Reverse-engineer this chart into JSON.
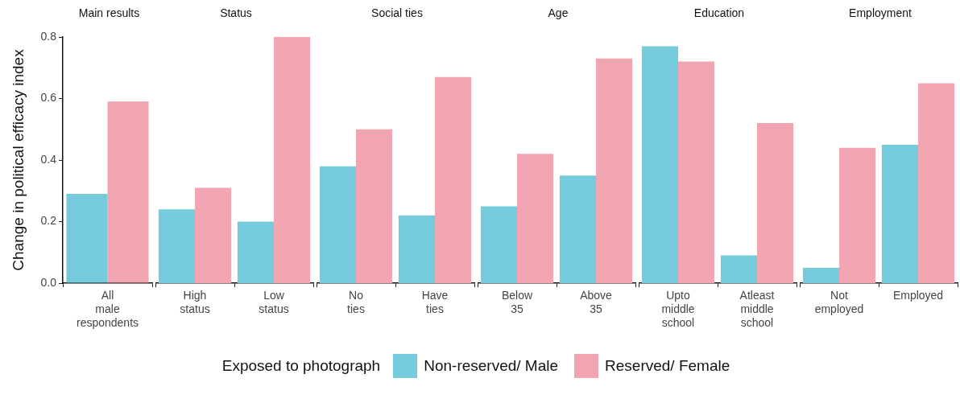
{
  "chart_data": [
    {
      "type": "bar",
      "title": "Main results",
      "ylabel": "Change in political efficacy index",
      "legend_title": "Exposed to photograph",
      "legend": "bottom",
      "categories": [
        "All male respondents"
      ],
      "ylim": [
        0,
        0.8
      ],
      "yticks": [
        {
          "value": 0,
          "label": "0.0"
        },
        {
          "value": 0.2,
          "label": "0.2"
        },
        {
          "value": 0.4,
          "label": "0.4"
        },
        {
          "value": 0.6,
          "label": "0.6"
        },
        {
          "value": 0.8,
          "label": "0.8"
        }
      ],
      "grid": false,
      "series": [
        {
          "name": "Non-reserved/ Male",
          "color": "#75cbdc",
          "values": [
            0.29
          ]
        },
        {
          "name": "Reserved/ Female",
          "color": "#f0a5b0",
          "values": [
            0.59
          ]
        }
      ]
    },
    {
      "type": "bar",
      "title": "Status",
      "categories": [
        "High status",
        "Low status"
      ],
      "ylim": [
        0,
        0.8
      ],
      "tick_labels": "x",
      "grid": false,
      "series": [
        {
          "color": "#75cbdc",
          "values": [
            0.24,
            0.2
          ]
        },
        {
          "color": "#f0a5b0",
          "values": [
            0.31,
            0.8
          ]
        }
      ]
    },
    {
      "type": "bar",
      "title": "Social ties",
      "categories": [
        "No ties",
        "Have ties"
      ],
      "ylim": [
        0,
        0.8
      ],
      "tick_labels": "x",
      "grid": false,
      "series": [
        {
          "color": "#75cbdc",
          "values": [
            0.38,
            0.22
          ]
        },
        {
          "color": "#f0a5b0",
          "values": [
            0.5,
            0.67
          ]
        }
      ]
    },
    {
      "type": "bar",
      "title": "Age",
      "categories": [
        "Below 35",
        "Above 35"
      ],
      "ylim": [
        0,
        0.8
      ],
      "tick_labels": "x",
      "grid": false,
      "series": [
        {
          "color": "#75cbdc",
          "values": [
            0.25,
            0.35
          ]
        },
        {
          "color": "#f0a5b0",
          "values": [
            0.42,
            0.73
          ]
        }
      ]
    },
    {
      "type": "bar",
      "title": "Education",
      "categories": [
        "Upto middle school",
        "Atleast middle school"
      ],
      "ylim": [
        0,
        0.8
      ],
      "tick_labels": "x",
      "grid": false,
      "series": [
        {
          "color": "#75cbdc",
          "values": [
            0.77,
            0.09
          ]
        },
        {
          "color": "#f0a5b0",
          "values": [
            0.72,
            0.52
          ]
        }
      ]
    },
    {
      "type": "bar",
      "title": "Employment",
      "categories": [
        "Not employed",
        "Employed"
      ],
      "ylim": [
        0,
        0.8
      ],
      "tick_labels": "x",
      "grid": false,
      "series": [
        {
          "color": "#75cbdc",
          "values": [
            0.05,
            0.45
          ]
        },
        {
          "color": "#f0a5b0",
          "values": [
            0.44,
            0.65
          ]
        }
      ]
    }
  ]
}
